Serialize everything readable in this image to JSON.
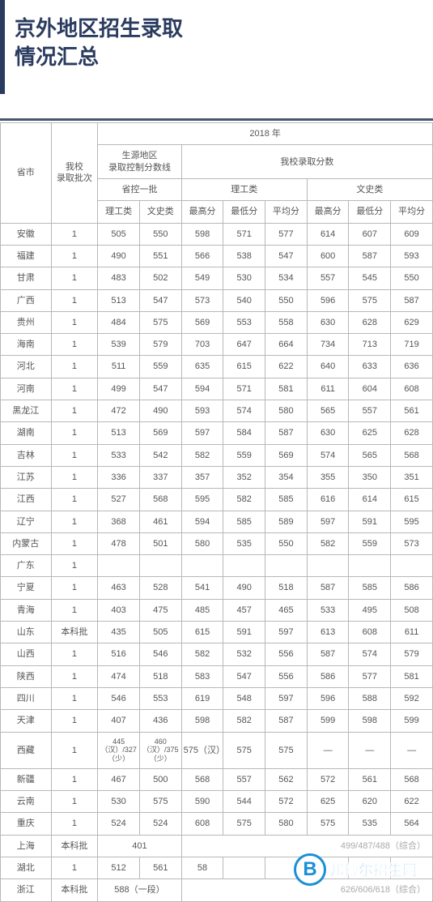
{
  "title": {
    "line1": "京外地区招生录取",
    "line2": "情况汇总"
  },
  "table": {
    "year_header": "2018 年",
    "columns": {
      "province": "省市",
      "batch": "我校\n录取批次",
      "control_line": "生源地区\n录取控制分数线",
      "our_score": "我校录取分数",
      "prov_batch1": "省控一批",
      "science_cat": "理工类",
      "arts_cat": "文史类",
      "sci": "理工类",
      "art": "文史类",
      "max": "最高分",
      "min": "最低分",
      "avg": "平均分"
    },
    "rows": [
      {
        "province": "安徽",
        "batch": "1",
        "ctrl_sci": "505",
        "ctrl_art": "550",
        "sci_max": "598",
        "sci_min": "571",
        "sci_avg": "577",
        "art_max": "614",
        "art_min": "607",
        "art_avg": "609"
      },
      {
        "province": "福建",
        "batch": "1",
        "ctrl_sci": "490",
        "ctrl_art": "551",
        "sci_max": "566",
        "sci_min": "538",
        "sci_avg": "547",
        "art_max": "600",
        "art_min": "587",
        "art_avg": "593"
      },
      {
        "province": "甘肃",
        "batch": "1",
        "ctrl_sci": "483",
        "ctrl_art": "502",
        "sci_max": "549",
        "sci_min": "530",
        "sci_avg": "534",
        "art_max": "557",
        "art_min": "545",
        "art_avg": "550"
      },
      {
        "province": "广西",
        "batch": "1",
        "ctrl_sci": "513",
        "ctrl_art": "547",
        "sci_max": "573",
        "sci_min": "540",
        "sci_avg": "550",
        "art_max": "596",
        "art_min": "575",
        "art_avg": "587"
      },
      {
        "province": "贵州",
        "batch": "1",
        "ctrl_sci": "484",
        "ctrl_art": "575",
        "sci_max": "569",
        "sci_min": "553",
        "sci_avg": "558",
        "art_max": "630",
        "art_min": "628",
        "art_avg": "629"
      },
      {
        "province": "海南",
        "batch": "1",
        "ctrl_sci": "539",
        "ctrl_art": "579",
        "sci_max": "703",
        "sci_min": "647",
        "sci_avg": "664",
        "art_max": "734",
        "art_min": "713",
        "art_avg": "719"
      },
      {
        "province": "河北",
        "batch": "1",
        "ctrl_sci": "511",
        "ctrl_art": "559",
        "sci_max": "635",
        "sci_min": "615",
        "sci_avg": "622",
        "art_max": "640",
        "art_min": "633",
        "art_avg": "636"
      },
      {
        "province": "河南",
        "batch": "1",
        "ctrl_sci": "499",
        "ctrl_art": "547",
        "sci_max": "594",
        "sci_min": "571",
        "sci_avg": "581",
        "art_max": "611",
        "art_min": "604",
        "art_avg": "608"
      },
      {
        "province": "黑龙江",
        "batch": "1",
        "ctrl_sci": "472",
        "ctrl_art": "490",
        "sci_max": "593",
        "sci_min": "574",
        "sci_avg": "580",
        "art_max": "565",
        "art_min": "557",
        "art_avg": "561"
      },
      {
        "province": "湖南",
        "batch": "1",
        "ctrl_sci": "513",
        "ctrl_art": "569",
        "sci_max": "597",
        "sci_min": "584",
        "sci_avg": "587",
        "art_max": "630",
        "art_min": "625",
        "art_avg": "628"
      },
      {
        "province": "吉林",
        "batch": "1",
        "ctrl_sci": "533",
        "ctrl_art": "542",
        "sci_max": "582",
        "sci_min": "559",
        "sci_avg": "569",
        "art_max": "574",
        "art_min": "565",
        "art_avg": "568"
      },
      {
        "province": "江苏",
        "batch": "1",
        "ctrl_sci": "336",
        "ctrl_art": "337",
        "sci_max": "357",
        "sci_min": "352",
        "sci_avg": "354",
        "art_max": "355",
        "art_min": "350",
        "art_avg": "351"
      },
      {
        "province": "江西",
        "batch": "1",
        "ctrl_sci": "527",
        "ctrl_art": "568",
        "sci_max": "595",
        "sci_min": "582",
        "sci_avg": "585",
        "art_max": "616",
        "art_min": "614",
        "art_avg": "615"
      },
      {
        "province": "辽宁",
        "batch": "1",
        "ctrl_sci": "368",
        "ctrl_art": "461",
        "sci_max": "594",
        "sci_min": "585",
        "sci_avg": "589",
        "art_max": "597",
        "art_min": "591",
        "art_avg": "595"
      },
      {
        "province": "内蒙古",
        "batch": "1",
        "ctrl_sci": "478",
        "ctrl_art": "501",
        "sci_max": "580",
        "sci_min": "535",
        "sci_avg": "550",
        "art_max": "582",
        "art_min": "559",
        "art_avg": "573"
      },
      {
        "province": "广东",
        "batch": "1",
        "ctrl_sci": "",
        "ctrl_art": "",
        "sci_max": "",
        "sci_min": "",
        "sci_avg": "",
        "art_max": "",
        "art_min": "",
        "art_avg": ""
      },
      {
        "province": "宁夏",
        "batch": "1",
        "ctrl_sci": "463",
        "ctrl_art": "528",
        "sci_max": "541",
        "sci_min": "490",
        "sci_avg": "518",
        "art_max": "587",
        "art_min": "585",
        "art_avg": "586"
      },
      {
        "province": "青海",
        "batch": "1",
        "ctrl_sci": "403",
        "ctrl_art": "475",
        "sci_max": "485",
        "sci_min": "457",
        "sci_avg": "465",
        "art_max": "533",
        "art_min": "495",
        "art_avg": "508"
      },
      {
        "province": "山东",
        "batch": "本科批",
        "ctrl_sci": "435",
        "ctrl_art": "505",
        "sci_max": "615",
        "sci_min": "591",
        "sci_avg": "597",
        "art_max": "613",
        "art_min": "608",
        "art_avg": "611"
      },
      {
        "province": "山西",
        "batch": "1",
        "ctrl_sci": "516",
        "ctrl_art": "546",
        "sci_max": "582",
        "sci_min": "532",
        "sci_avg": "556",
        "art_max": "587",
        "art_min": "574",
        "art_avg": "579"
      },
      {
        "province": "陕西",
        "batch": "1",
        "ctrl_sci": "474",
        "ctrl_art": "518",
        "sci_max": "583",
        "sci_min": "547",
        "sci_avg": "556",
        "art_max": "586",
        "art_min": "577",
        "art_avg": "581"
      },
      {
        "province": "四川",
        "batch": "1",
        "ctrl_sci": "546",
        "ctrl_art": "553",
        "sci_max": "619",
        "sci_min": "548",
        "sci_avg": "597",
        "art_max": "596",
        "art_min": "588",
        "art_avg": "592"
      },
      {
        "province": "天津",
        "batch": "1",
        "ctrl_sci": "407",
        "ctrl_art": "436",
        "sci_max": "598",
        "sci_min": "582",
        "sci_avg": "587",
        "art_max": "599",
        "art_min": "598",
        "art_avg": "599"
      },
      {
        "province": "西藏",
        "batch": "1",
        "ctrl_sci": "445（汉）/327（少）",
        "ctrl_art": "460（汉）/375（少）",
        "sci_max": "575（汉）",
        "sci_min": "575",
        "sci_avg": "575",
        "art_max": "—",
        "art_min": "—",
        "art_avg": "—"
      },
      {
        "province": "新疆",
        "batch": "1",
        "ctrl_sci": "467",
        "ctrl_art": "500",
        "sci_max": "568",
        "sci_min": "557",
        "sci_avg": "562",
        "art_max": "572",
        "art_min": "561",
        "art_avg": "568"
      },
      {
        "province": "云南",
        "batch": "1",
        "ctrl_sci": "530",
        "ctrl_art": "575",
        "sci_max": "590",
        "sci_min": "544",
        "sci_avg": "572",
        "art_max": "625",
        "art_min": "620",
        "art_avg": "622"
      },
      {
        "province": "重庆",
        "batch": "1",
        "ctrl_sci": "524",
        "ctrl_art": "524",
        "sci_max": "608",
        "sci_min": "575",
        "sci_avg": "580",
        "art_max": "575",
        "art_min": "535",
        "art_avg": "564"
      }
    ],
    "special_rows": {
      "shanghai": {
        "province": "上海",
        "batch": "本科批",
        "ctrl": "401",
        "note": "499/487/488（综合）"
      },
      "hubei": {
        "province": "湖北",
        "batch": "1",
        "ctrl_sci": "512",
        "ctrl_art": "561",
        "sci_max": "58"
      },
      "zhejiang": {
        "province": "浙江",
        "batch": "本科批",
        "ctrl": "588（一段）",
        "note": "626/606/618（综合）"
      }
    }
  },
  "watermark": {
    "letter": "B",
    "text": "邦博尔招生网"
  },
  "colors": {
    "title": "#2a3b5f",
    "border": "#b8b8b8",
    "text": "#555555",
    "watermark": "#1a8fd8",
    "hr": "#4a5670"
  }
}
